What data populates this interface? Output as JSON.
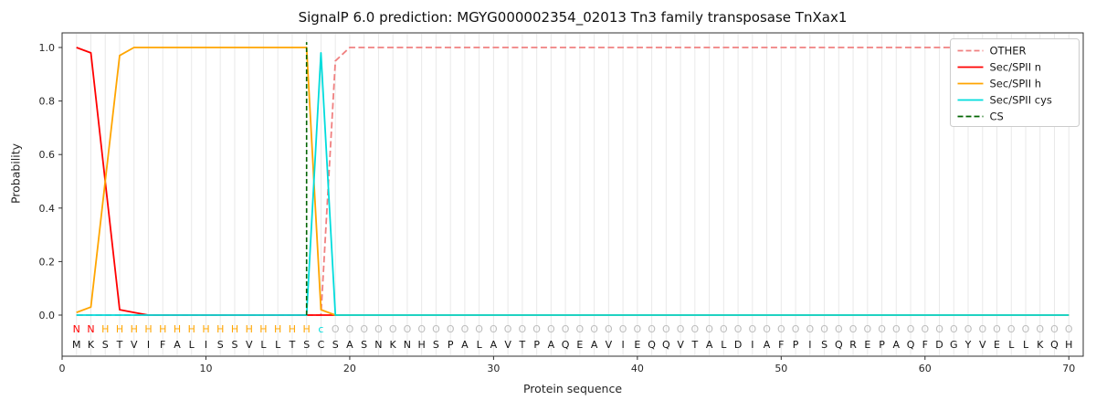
{
  "chart_data": {
    "type": "line",
    "title": "SignalP 6.0 prediction: MGYG000002354_02013 Tn3 family transposase TnXax1",
    "xlabel": "Protein sequence",
    "ylabel": "Probability",
    "xlim": [
      0,
      71
    ],
    "ylim": [
      -0.16,
      1.05
    ],
    "xticks": [
      0,
      10,
      20,
      30,
      40,
      50,
      60,
      70
    ],
    "yticks": [
      "0.0",
      "0.2",
      "0.4",
      "0.6",
      "0.8",
      "1.0"
    ],
    "grid": "vertical-gridline-per-residue",
    "legend_position": "upper-right",
    "series": [
      {
        "name": "OTHER",
        "color": "#f08080",
        "dashed": true,
        "values": [
          0,
          0,
          0,
          0,
          0,
          0,
          0,
          0,
          0,
          0,
          0,
          0,
          0,
          0,
          0,
          0,
          0,
          0,
          0.95,
          1,
          1,
          1,
          1,
          1,
          1,
          1,
          1,
          1,
          1,
          1,
          1,
          1,
          1,
          1,
          1,
          1,
          1,
          1,
          1,
          1,
          1,
          1,
          1,
          1,
          1,
          1,
          1,
          1,
          1,
          1,
          1,
          1,
          1,
          1,
          1,
          1,
          1,
          1,
          1,
          1,
          1,
          1,
          1,
          1,
          1,
          1,
          1,
          1,
          1,
          1
        ]
      },
      {
        "name": "Sec/SPII n",
        "color": "#ff0000",
        "dashed": false,
        "values": [
          1,
          0.98,
          0.5,
          0.02,
          0.01,
          0,
          0,
          0,
          0,
          0,
          0,
          0,
          0,
          0,
          0,
          0,
          0,
          0,
          0,
          0,
          0,
          0,
          0,
          0,
          0,
          0,
          0,
          0,
          0,
          0,
          0,
          0,
          0,
          0,
          0,
          0,
          0,
          0,
          0,
          0,
          0,
          0,
          0,
          0,
          0,
          0,
          0,
          0,
          0,
          0,
          0,
          0,
          0,
          0,
          0,
          0,
          0,
          0,
          0,
          0,
          0,
          0,
          0,
          0,
          0,
          0,
          0,
          0,
          0,
          0
        ]
      },
      {
        "name": "Sec/SPII h",
        "color": "#ffa500",
        "dashed": false,
        "values": [
          0.01,
          0.03,
          0.5,
          0.97,
          1,
          1,
          1,
          1,
          1,
          1,
          1,
          1,
          1,
          1,
          1,
          1,
          1,
          0.02,
          0,
          0,
          0,
          0,
          0,
          0,
          0,
          0,
          0,
          0,
          0,
          0,
          0,
          0,
          0,
          0,
          0,
          0,
          0,
          0,
          0,
          0,
          0,
          0,
          0,
          0,
          0,
          0,
          0,
          0,
          0,
          0,
          0,
          0,
          0,
          0,
          0,
          0,
          0,
          0,
          0,
          0,
          0,
          0,
          0,
          0,
          0,
          0,
          0,
          0,
          0,
          0
        ]
      },
      {
        "name": "Sec/SPII cys",
        "color": "#00dcdc",
        "dashed": false,
        "values": [
          0,
          0,
          0,
          0,
          0,
          0,
          0,
          0,
          0,
          0,
          0,
          0,
          0,
          0,
          0,
          0,
          0,
          0.98,
          0,
          0,
          0,
          0,
          0,
          0,
          0,
          0,
          0,
          0,
          0,
          0,
          0,
          0,
          0,
          0,
          0,
          0,
          0,
          0,
          0,
          0,
          0,
          0,
          0,
          0,
          0,
          0,
          0,
          0,
          0,
          0,
          0,
          0,
          0,
          0,
          0,
          0,
          0,
          0,
          0,
          0,
          0,
          0,
          0,
          0,
          0,
          0,
          0,
          0,
          0,
          0
        ]
      }
    ],
    "cs_marker": {
      "label": "CS",
      "x": 17,
      "color": "#006400",
      "dashed": true
    },
    "sequence": "MKSTVIFALISSVLLTSCSASNKNHSPALAVTPAQEAVIEQQVTALDIAFPISQREPAQFDGYVELLKQH",
    "residue_labels": "NNHHHHHHHHHHHHHHHcOOOOOOOOOOOOOOOOOOOOOOOOOOOOOOOOOOOOOOOOOOOOOOOOOOOO",
    "label_colors": {
      "N": "#ff0000",
      "H": "#ffa500",
      "c": "#00dcdc",
      "O": "#bdbdbd"
    },
    "sequence_color": "#111111"
  },
  "legend": {
    "items": [
      {
        "label": "OTHER",
        "color": "#f08080",
        "dashed": true
      },
      {
        "label": "Sec/SPII n",
        "color": "#ff0000",
        "dashed": false
      },
      {
        "label": "Sec/SPII h",
        "color": "#ffa500",
        "dashed": false
      },
      {
        "label": "Sec/SPII cys",
        "color": "#00dcdc",
        "dashed": false
      },
      {
        "label": "CS",
        "color": "#006400",
        "dashed": true
      }
    ]
  }
}
